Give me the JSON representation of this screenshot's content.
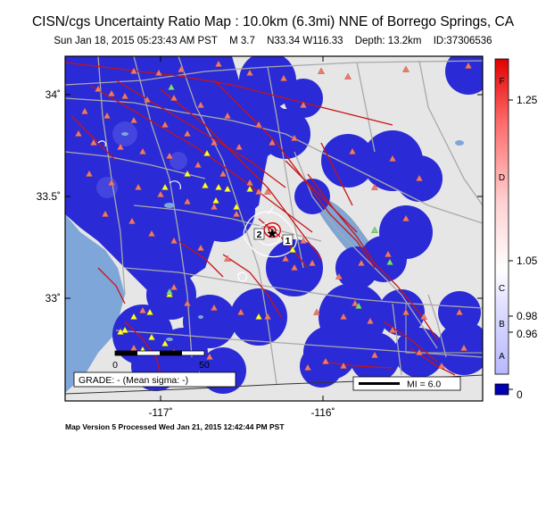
{
  "title": "CISN/cgs Uncertainty Ratio Map : 10.0km (6.3mi) NNE of Borrego Springs, CA",
  "subtitle": {
    "datetime": "Sun Jan 18, 2015 05:23:43 AM PST",
    "magnitude": "M 3.7",
    "location": "N33.34 W116.33",
    "depth": "Depth: 13.2km",
    "event_id": "ID:37306536"
  },
  "axes": {
    "lat_labels": [
      "34˚",
      "33.5˚",
      "33˚"
    ],
    "lon_labels": [
      "-117˚",
      "-116˚"
    ]
  },
  "colorbar": {
    "grades": [
      "F",
      "D",
      "C",
      "B",
      "A"
    ],
    "values": [
      "1.25",
      "1.05",
      "0.98",
      "0.96",
      "0"
    ]
  },
  "grade_box": "GRADE: - (Mean sigma: -)",
  "mi_legend": "MI = 6.0",
  "scale_bar": {
    "start": "0",
    "end": "50"
  },
  "contour_labels": [
    "2",
    "1"
  ],
  "footer": "Map Version 5 Processed Wed Jan 21, 2015 12:42:44 PM PST",
  "colors": {
    "uncertainty_blue": "#2a2ad6",
    "land_gray": "#e6e6e6",
    "water_blue": "#7ea6d8",
    "fault_red": "#c81414",
    "station_salmon": "#f07a6a",
    "station_yellow": "#ffff33",
    "station_green": "#7fd97f"
  }
}
